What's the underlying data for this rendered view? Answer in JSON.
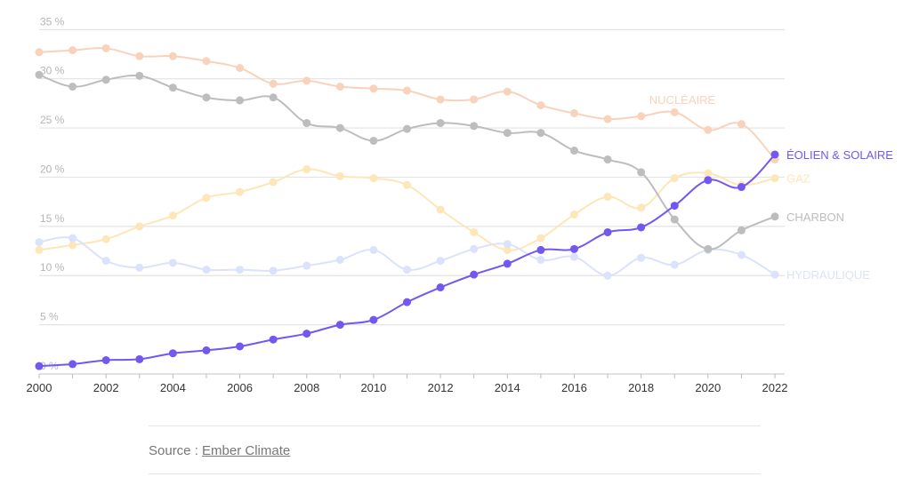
{
  "chart_data": {
    "type": "line",
    "title": "",
    "xlabel": "",
    "ylabel": "",
    "ylim": [
      0,
      35
    ],
    "xlim": [
      2000,
      2022
    ],
    "grid": true,
    "y_ticks": [
      "0 %",
      "5 %",
      "10 %",
      "15 %",
      "20 %",
      "25 %",
      "30 %",
      "35 %"
    ],
    "y_tick_values": [
      0,
      5,
      10,
      15,
      20,
      25,
      30,
      35
    ],
    "x_tick_labels": [
      "2000",
      "2002",
      "2004",
      "2006",
      "2008",
      "2010",
      "2012",
      "2014",
      "2016",
      "2018",
      "2020",
      "2022"
    ],
    "x": [
      2000,
      2001,
      2002,
      2003,
      2004,
      2005,
      2006,
      2007,
      2008,
      2009,
      2010,
      2011,
      2012,
      2013,
      2014,
      2015,
      2016,
      2017,
      2018,
      2019,
      2020,
      2021,
      2022
    ],
    "series": [
      {
        "name": "NUCLÉAIRE",
        "color": "#f9d2bc",
        "label_pos": "above",
        "values": [
          32.7,
          32.9,
          33.1,
          32.3,
          32.3,
          31.8,
          31.1,
          29.5,
          29.8,
          29.2,
          29.0,
          28.8,
          27.9,
          27.9,
          28.7,
          27.3,
          26.5,
          25.9,
          26.2,
          26.6,
          24.8,
          25.4,
          21.8
        ]
      },
      {
        "name": "CHARBON",
        "color": "#bdbdbd",
        "label_pos": "end",
        "values": [
          30.4,
          29.2,
          29.9,
          30.3,
          29.1,
          28.1,
          27.8,
          28.1,
          25.5,
          25.0,
          23.7,
          24.9,
          25.5,
          25.2,
          24.5,
          24.5,
          22.7,
          21.8,
          20.5,
          15.7,
          12.7,
          14.6,
          16.0
        ]
      },
      {
        "name": "GAZ",
        "color": "#fde6b8",
        "label_pos": "end",
        "values": [
          12.6,
          13.1,
          13.7,
          15.0,
          16.1,
          17.9,
          18.5,
          19.5,
          20.8,
          20.1,
          19.9,
          19.2,
          16.7,
          14.4,
          12.6,
          13.8,
          16.2,
          18.0,
          16.9,
          19.9,
          20.4,
          19.2,
          19.9
        ]
      },
      {
        "name": "HYDRAULIQUE",
        "color": "#dbe2fb",
        "label_pos": "end",
        "values": [
          13.4,
          13.8,
          11.5,
          10.8,
          11.3,
          10.6,
          10.6,
          10.5,
          11.0,
          11.6,
          12.6,
          10.6,
          11.5,
          12.7,
          13.2,
          11.6,
          11.9,
          10.0,
          11.8,
          11.1,
          12.6,
          12.1,
          10.1
        ]
      },
      {
        "name": "ÉOLIEN & SOLAIRE",
        "color": "#7357ef",
        "label_pos": "end",
        "values": [
          0.8,
          1.0,
          1.4,
          1.5,
          2.1,
          2.4,
          2.8,
          3.5,
          4.1,
          5.0,
          5.5,
          7.3,
          8.8,
          10.1,
          11.2,
          12.6,
          12.7,
          14.4,
          14.9,
          17.1,
          19.7,
          19.0,
          22.3
        ]
      }
    ]
  },
  "source": {
    "prefix": "Source : ",
    "link": "Ember Climate"
  }
}
